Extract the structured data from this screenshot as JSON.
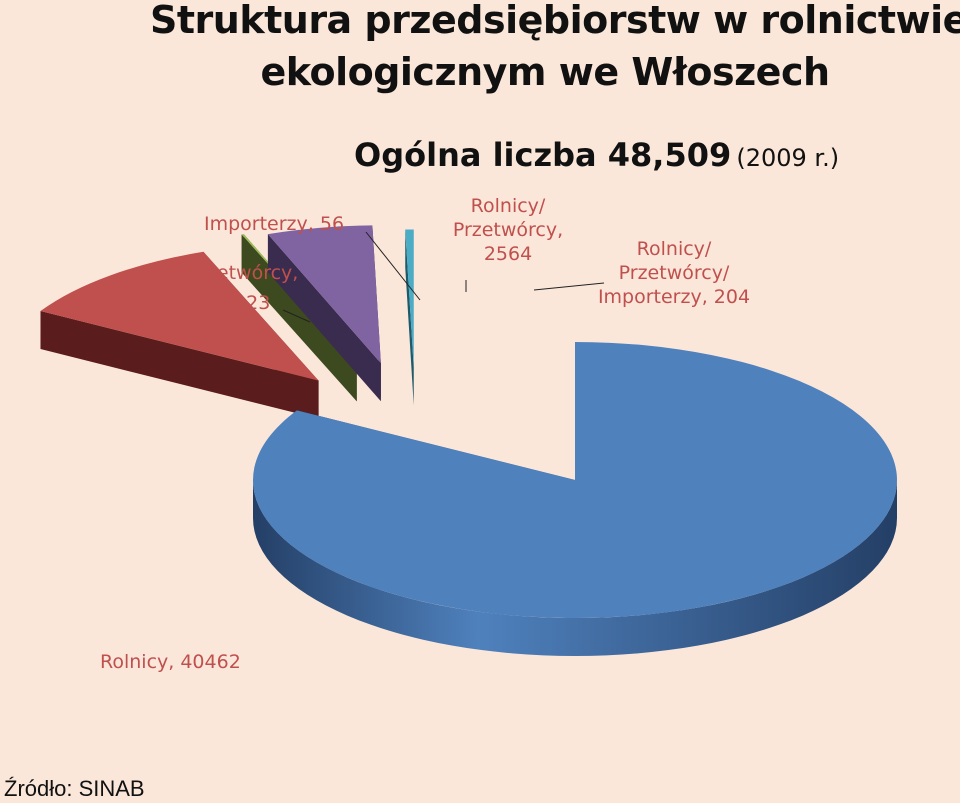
{
  "title_line1": "Struktura przedsiębiorstw w rolnictwie",
  "title_line2": "ekologicznym we Włoszech",
  "subtitle_total": "Ogólna liczba 48,509",
  "subtitle_year": "(2009 r.)",
  "source": "Źródło: SINAB",
  "chart_data": {
    "type": "pie",
    "title": "Struktura przedsiębiorstw w rolnictwie ekologicznym we Włoszech",
    "subtitle": "Ogólna liczba 48,509 (2009 r.)",
    "slices": [
      {
        "name": "Rolnicy",
        "value": 40462,
        "label": "Rolnicy, 40462",
        "color": "#4f81bd",
        "side": "#243f66"
      },
      {
        "name": "Przetwórcy",
        "value": 5223,
        "label": "Przetwórcy, 5223",
        "color": "#c0504d",
        "side": "#5a1c1c"
      },
      {
        "name": "Importerzy",
        "value": 56,
        "label": "Importerzy, 56",
        "color": "#9bbb59",
        "side": "#3d4a1f"
      },
      {
        "name": "Rolnicy/ Przetwórcy",
        "value": 2564,
        "label": "Rolnicy/ Przetwórcy, 2564",
        "color": "#8064a2",
        "side": "#3a2c4e"
      },
      {
        "name": "Rolnicy/ Przetwórcy/ Importerzy",
        "value": 204,
        "label": "Rolnicy/ Przetwórcy/ Importerzy, 204",
        "color": "#4bacc6",
        "side": "#1f5a6a"
      }
    ],
    "legend": "none",
    "exploded": true,
    "style": "3d"
  }
}
